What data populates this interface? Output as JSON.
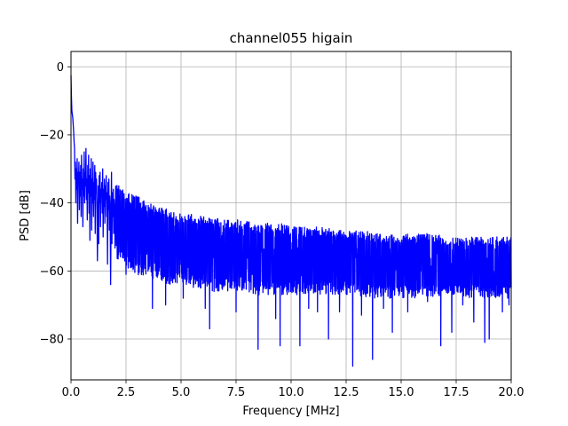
{
  "chart_data": {
    "type": "line",
    "title": "channel055 higain",
    "xlabel": "Frequency [MHz]",
    "ylabel": "PSD [dB]",
    "xlim": [
      0,
      20
    ],
    "ylim": [
      -92,
      4.5
    ],
    "x_ticks": [
      0,
      2.5,
      5,
      7.5,
      10,
      12.5,
      15,
      17.5,
      20
    ],
    "x_tick_labels": [
      "0.0",
      "2.5",
      "5.0",
      "7.5",
      "10.0",
      "12.5",
      "15.0",
      "17.5",
      "20.0"
    ],
    "y_ticks": [
      0,
      -20,
      -40,
      -60,
      -80
    ],
    "y_tick_labels": [
      "0",
      "−20",
      "−40",
      "−60",
      "−80"
    ],
    "grid": true,
    "series": [
      {
        "color": "#0000ff",
        "x_start": 0,
        "x_step": 0.02,
        "values": [
          -2.5,
          -9,
          -13,
          -14,
          -15,
          -17,
          -19,
          -22,
          -24,
          -33,
          -28,
          -40,
          -30,
          -36,
          -27,
          -46,
          -31,
          -34,
          -28,
          -42,
          -31,
          -38,
          -29,
          -44,
          -26,
          -36,
          -33,
          -47,
          -30,
          -38,
          -25,
          -40,
          -31,
          -35,
          -24,
          -39,
          -33,
          -45,
          -29,
          -37,
          -26,
          -43,
          -32,
          -51,
          -30,
          -38,
          -27,
          -48,
          -33,
          -40,
          -28,
          -44,
          -34,
          -39,
          -29,
          -49,
          -31,
          -37,
          -33,
          -42,
          -30,
          -45,
          -35,
          -52,
          -32,
          -40,
          -31,
          -47,
          -36,
          -38,
          -34,
          -43,
          -30,
          -50,
          -36,
          -41,
          -33,
          -46,
          -35,
          -39,
          -32,
          -44,
          -37,
          -58,
          -34,
          -42,
          -33,
          -48,
          -38,
          -41,
          -35,
          -45,
          -31,
          -52,
          -37,
          -44,
          -36,
          -49,
          -39,
          -42
        ],
        "envelope": {
          "x": [
            1,
            1.5,
            2,
            2.5,
            3,
            3.5,
            4,
            4.5,
            5,
            5.5,
            6,
            6.5,
            7,
            7.5,
            8,
            8.5,
            9,
            9.5,
            10,
            10.5,
            11,
            11.5,
            12,
            12.5,
            13,
            13.5,
            14,
            14.5,
            15,
            15.5,
            16,
            16.5,
            17,
            17.5,
            18,
            18.5,
            19,
            19.5,
            20
          ],
          "upper": [
            -29,
            -33,
            -36,
            -39,
            -40,
            -42,
            -43,
            -44,
            -45,
            -45,
            -46,
            -46,
            -47,
            -47,
            -47,
            -48,
            -48,
            -48,
            -49,
            -49,
            -49,
            -49,
            -50,
            -50,
            -50,
            -50,
            -51,
            -51,
            -51,
            -51,
            -51,
            -51,
            -52,
            -52,
            -52,
            -52,
            -52,
            -52,
            -52
          ],
          "lower": [
            -46,
            -51,
            -54,
            -57,
            -59,
            -60,
            -61,
            -62,
            -62,
            -63,
            -63,
            -64,
            -64,
            -64,
            -64,
            -65,
            -65,
            -65,
            -65,
            -65,
            -65,
            -65,
            -65,
            -65,
            -65,
            -66,
            -66,
            -66,
            -66,
            -66,
            -66,
            -66,
            -66,
            -66,
            -66,
            -66,
            -66,
            -66,
            -66
          ]
        },
        "notable_dips": [
          {
            "x": 1.2,
            "y": -57
          },
          {
            "x": 1.8,
            "y": -64
          },
          {
            "x": 2.5,
            "y": -61
          },
          {
            "x": 3.5,
            "y": -60
          },
          {
            "x": 3.7,
            "y": -71
          },
          {
            "x": 4.3,
            "y": -70
          },
          {
            "x": 5.1,
            "y": -68
          },
          {
            "x": 6.1,
            "y": -71
          },
          {
            "x": 6.3,
            "y": -77
          },
          {
            "x": 6.5,
            "y": -66
          },
          {
            "x": 7.5,
            "y": -72
          },
          {
            "x": 8.5,
            "y": -83
          },
          {
            "x": 9.3,
            "y": -74
          },
          {
            "x": 9.5,
            "y": -82
          },
          {
            "x": 10.4,
            "y": -82
          },
          {
            "x": 10.8,
            "y": -71
          },
          {
            "x": 11.2,
            "y": -72
          },
          {
            "x": 11.7,
            "y": -80
          },
          {
            "x": 12.2,
            "y": -72
          },
          {
            "x": 12.8,
            "y": -88
          },
          {
            "x": 13.2,
            "y": -73
          },
          {
            "x": 13.7,
            "y": -86
          },
          {
            "x": 14.2,
            "y": -71
          },
          {
            "x": 14.6,
            "y": -78
          },
          {
            "x": 15.3,
            "y": -72
          },
          {
            "x": 16.2,
            "y": -69
          },
          {
            "x": 16.8,
            "y": -82
          },
          {
            "x": 17.3,
            "y": -78
          },
          {
            "x": 17.8,
            "y": -70
          },
          {
            "x": 18.3,
            "y": -75
          },
          {
            "x": 18.8,
            "y": -81
          },
          {
            "x": 19.0,
            "y": -80
          },
          {
            "x": 19.6,
            "y": -72
          },
          {
            "x": 19.9,
            "y": -70
          }
        ],
        "noise_amplitude": 4.5
      }
    ]
  }
}
